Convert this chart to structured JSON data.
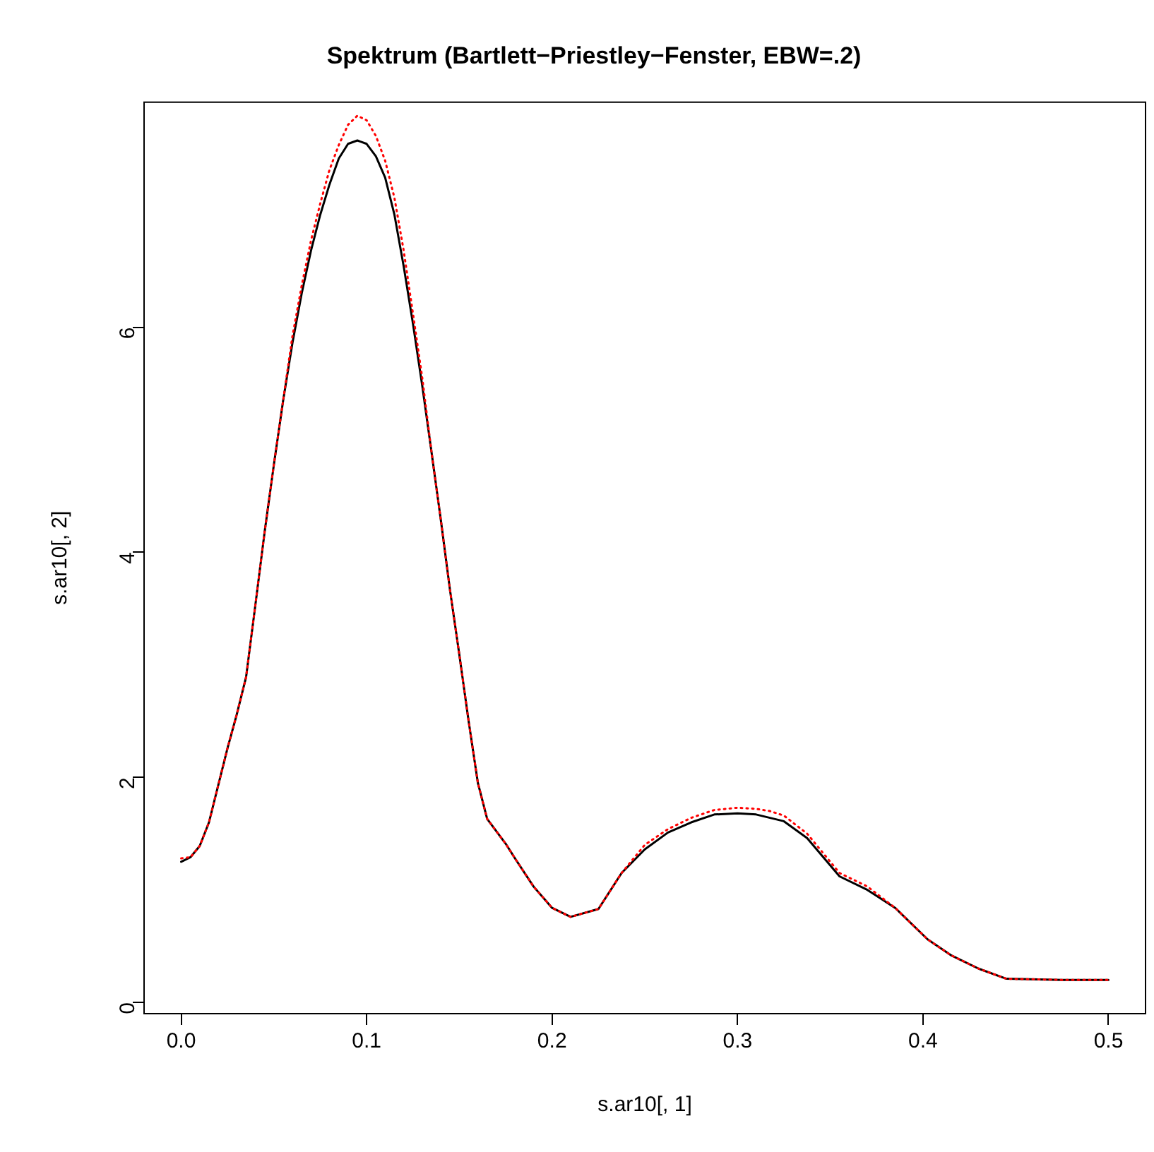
{
  "chart_data": {
    "type": "line",
    "title": "Spektrum (Bartlett−Priestley−Fenster, EBW=.2)",
    "xlabel": "s.ar10[, 1]",
    "ylabel": "s.ar10[, 2]",
    "x": [
      0,
      0.005,
      0.01,
      0.015,
      0.02,
      0.025,
      0.03,
      0.035,
      0.04,
      0.045,
      0.05,
      0.055,
      0.06,
      0.065,
      0.07,
      0.075,
      0.08,
      0.085,
      0.09,
      0.095,
      0.1,
      0.105,
      0.11,
      0.115,
      0.12,
      0.125,
      0.13,
      0.135,
      0.14,
      0.145,
      0.15,
      0.155,
      0.16,
      0.165,
      0.175,
      0.18,
      0.19,
      0.2,
      0.21,
      0.225,
      0.2375,
      0.25,
      0.2625,
      0.275,
      0.2875,
      0.3,
      0.31,
      0.3175,
      0.325,
      0.3375,
      0.355,
      0.37,
      0.385,
      0.4025,
      0.415,
      0.43,
      0.445,
      0.475,
      0.5
    ],
    "series": [
      {
        "color": "#000000",
        "line_style": "solid",
        "values": [
          1.25,
          1.29,
          1.39,
          1.6,
          1.93,
          2.26,
          2.56,
          2.89,
          3.53,
          4.18,
          4.78,
          5.35,
          5.86,
          6.3,
          6.68,
          7.0,
          7.27,
          7.5,
          7.63,
          7.66,
          7.63,
          7.52,
          7.33,
          7.0,
          6.54,
          6.03,
          5.48,
          4.89,
          4.29,
          3.66,
          3.09,
          2.5,
          1.95,
          1.63,
          1.41,
          1.28,
          1.03,
          0.84,
          0.76,
          0.83,
          1.15,
          1.36,
          1.51,
          1.6,
          1.67,
          1.68,
          1.67,
          1.64,
          1.61,
          1.46,
          1.12,
          1.0,
          0.84,
          0.56,
          0.42,
          0.3,
          0.21,
          0.2,
          0.2
        ]
      },
      {
        "color": "#ff0000",
        "line_style": "dotted",
        "values": [
          1.28,
          1.29,
          1.39,
          1.6,
          1.93,
          2.26,
          2.56,
          2.89,
          3.53,
          4.18,
          4.78,
          5.35,
          5.92,
          6.37,
          6.77,
          7.1,
          7.4,
          7.62,
          7.8,
          7.88,
          7.84,
          7.7,
          7.48,
          7.15,
          6.68,
          6.12,
          5.55,
          4.89,
          4.29,
          3.66,
          3.09,
          2.5,
          1.95,
          1.63,
          1.41,
          1.28,
          1.03,
          0.84,
          0.76,
          0.83,
          1.15,
          1.4,
          1.54,
          1.64,
          1.71,
          1.73,
          1.72,
          1.7,
          1.66,
          1.5,
          1.15,
          1.03,
          0.84,
          0.56,
          0.42,
          0.3,
          0.21,
          0.2,
          0.2
        ]
      }
    ],
    "xlim": [
      -0.02,
      0.52
    ],
    "xticks": [
      {
        "value": 0,
        "label": "0.0"
      },
      0.1,
      0.2,
      0.3,
      0.4,
      0.5
    ],
    "ylim": [
      -0.1,
      8
    ],
    "yticks": [
      0,
      2,
      4,
      6
    ],
    "grid": false,
    "legend": false,
    "marker": "none"
  }
}
